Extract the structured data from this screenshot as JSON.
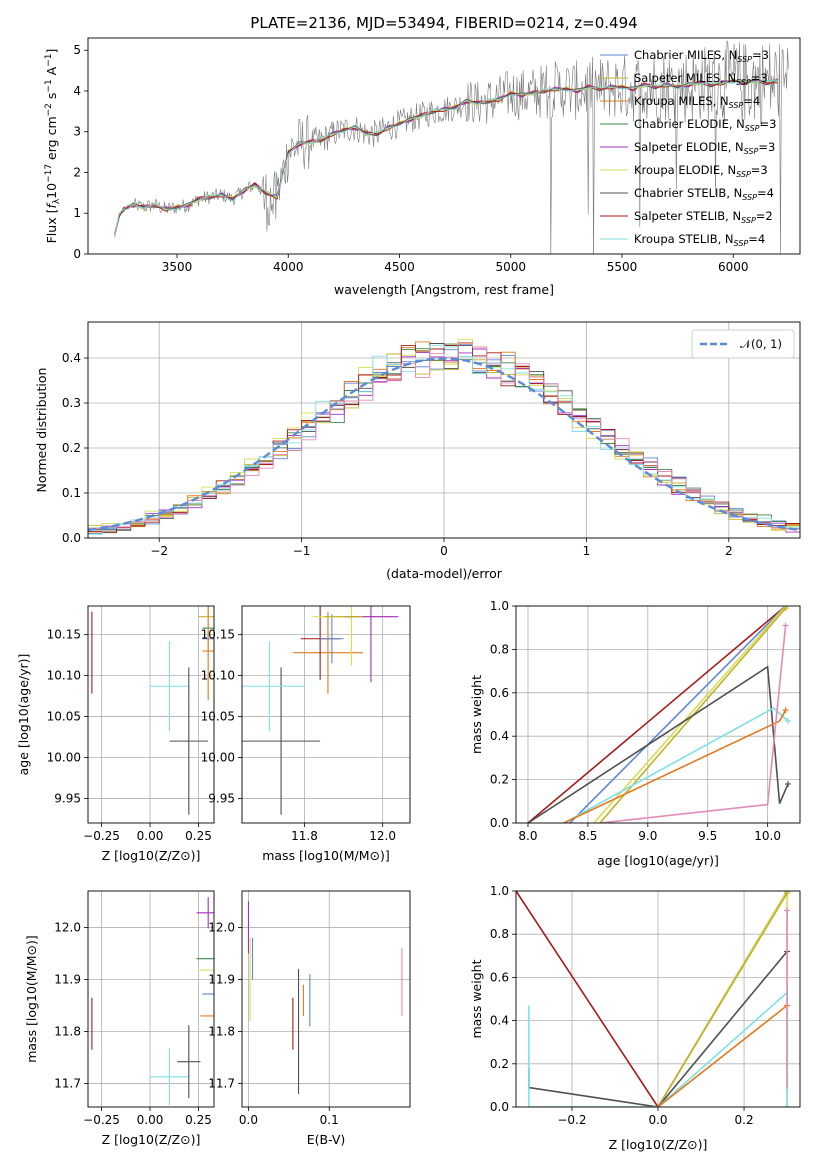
{
  "colors": {
    "chabrier_miles": "#5f87d6",
    "salpeter_miles": "#c2b229",
    "kroupa_miles": "#e4791f",
    "chabrier_elodie": "#3d8a4a",
    "salpeter_elodie": "#a52fc2",
    "kroupa_elodie": "#d6dd55",
    "chabrier_stelib": "#505050",
    "salpeter_stelib": "#a61a1a",
    "kroupa_stelib": "#7ee0e6",
    "pink": "#e48ab8",
    "normal": "#5b8bd6"
  },
  "chart_data": [
    {
      "id": "spectrum",
      "type": "line",
      "title": "PLATE=2136, MJD=53494, FIBERID=0214, z=0.494",
      "xlabel": "wavelength [Angstrom, rest frame]",
      "ylabel": "Flux [f_λ 10^-17 erg cm^-2 s^-1 A^-1]",
      "xlim": [
        3100,
        6300
      ],
      "ylim": [
        0,
        5.3
      ],
      "xticks": [
        "3500",
        "4000",
        "4500",
        "5000",
        "5500",
        "6000"
      ],
      "yticks": [
        "0",
        "1",
        "2",
        "3",
        "4",
        "5"
      ],
      "legend": [
        {
          "label": "Chabrier MILES, N_SSP=3",
          "color": "#5f87d6"
        },
        {
          "label": "Salpeter MILES, N_SSP=3",
          "color": "#c2b229"
        },
        {
          "label": "Kroupa MILES, N_SSP=4",
          "color": "#e4791f"
        },
        {
          "label": "Chabrier ELODIE, N_SSP=3",
          "color": "#3d8a4a"
        },
        {
          "label": "Salpeter ELODIE, N_SSP=3",
          "color": "#a52fc2"
        },
        {
          "label": "Kroupa ELODIE, N_SSP=3",
          "color": "#d6dd55"
        },
        {
          "label": "Chabrier STELIB, N_SSP=4",
          "color": "#505050"
        },
        {
          "label": "Salpeter STELIB, N_SSP=2",
          "color": "#a61a1a"
        },
        {
          "label": "Kroupa STELIB, N_SSP=4",
          "color": "#7ee0e6"
        }
      ],
      "model_x": [
        3220,
        3240,
        3260,
        3280,
        3300,
        3350,
        3400,
        3450,
        3500,
        3550,
        3600,
        3650,
        3700,
        3750,
        3800,
        3850,
        3900,
        3950,
        4000,
        4050,
        4100,
        4150,
        4200,
        4250,
        4300,
        4350,
        4400,
        4450,
        4500,
        4550,
        4600,
        4650,
        4700,
        4750,
        4800,
        4850,
        4900,
        4950,
        5000,
        5050,
        5100,
        5150,
        5200,
        5250,
        5300,
        5350,
        5400,
        5450,
        5500,
        5550,
        5600,
        5650,
        5700,
        5750,
        5800,
        5850,
        5900,
        5950,
        6000,
        6050,
        6100,
        6150,
        6200
      ],
      "model_y": [
        0.45,
        0.95,
        1.1,
        1.15,
        1.2,
        1.15,
        1.2,
        1.1,
        1.15,
        1.2,
        1.35,
        1.4,
        1.45,
        1.35,
        1.55,
        1.7,
        1.5,
        1.4,
        2.5,
        2.7,
        2.75,
        2.8,
        2.95,
        3.05,
        3.1,
        2.95,
        2.95,
        3.1,
        3.2,
        3.3,
        3.4,
        3.5,
        3.55,
        3.6,
        3.75,
        3.7,
        3.75,
        3.8,
        3.95,
        3.9,
        3.95,
        4.0,
        4.05,
        4.05,
        4.0,
        4.1,
        4.05,
        4.1,
        4.1,
        4.05,
        4.15,
        4.1,
        4.15,
        4.1,
        4.15,
        4.2,
        4.15,
        4.2,
        4.25,
        4.2,
        4.25,
        4.2,
        4.25
      ],
      "note_data": "SDSS spectrum (grey) shown with nine overlapping best-fit model curves"
    },
    {
      "id": "residuals",
      "type": "line",
      "xlabel": "(data-model)/error",
      "ylabel": "Normed distribution",
      "xlim": [
        -2.5,
        2.5
      ],
      "ylim": [
        0,
        0.48
      ],
      "xticks": [
        "−2",
        "−1",
        "0",
        "1",
        "2"
      ],
      "yticks": [
        "0.0",
        "0.1",
        "0.2",
        "0.3",
        "0.4"
      ],
      "legend_label": "𝒩(0, 1)",
      "grid": true
    },
    {
      "id": "age-vs-Z",
      "type": "scatter",
      "xlabel": "Z [log10(Z/Z⊙)]",
      "ylabel": "age  [log10(age/yr)]",
      "xlim": [
        -0.32,
        0.33
      ],
      "ylim": [
        9.92,
        10.185
      ],
      "xticks": [
        "−0.25",
        "0.00",
        "0.25"
      ],
      "yticks": [
        "9.95",
        "10.00",
        "10.05",
        "10.10",
        "10.15"
      ],
      "points": [
        {
          "x": -0.3,
          "y": 10.128,
          "xerr": 0.0,
          "yerr": 0.05,
          "color": "#a61a1a"
        },
        {
          "x": 0.1,
          "y": 10.087,
          "xerr": 0.1,
          "yerr": 0.055,
          "color": "#7ee0e6"
        },
        {
          "x": 0.2,
          "y": 10.02,
          "xerr": 0.1,
          "yerr": 0.09,
          "color": "#505050"
        },
        {
          "x": 0.3,
          "y": 10.172,
          "xerr": 0.05,
          "yerr": 0.0,
          "color": "#c2b229"
        },
        {
          "x": 0.3,
          "y": 10.172,
          "xerr": 0.0,
          "yerr": 0.05,
          "color": "#d6dd55"
        },
        {
          "x": 0.3,
          "y": 10.158,
          "xerr": 0.03,
          "yerr": 0.0,
          "color": "#3d8a4a"
        },
        {
          "x": 0.3,
          "y": 10.145,
          "xerr": 0.03,
          "yerr": 0.0,
          "color": "#5f87d6"
        },
        {
          "x": 0.3,
          "y": 10.13,
          "xerr": 0.03,
          "yerr": 0.06,
          "color": "#e4791f"
        }
      ]
    },
    {
      "id": "age-vs-mass",
      "type": "scatter",
      "xlabel": "mass [log10(M/M⊙)]",
      "ylabel": "",
      "xlim": [
        11.64,
        12.07
      ],
      "ylim": [
        9.92,
        10.185
      ],
      "xticks": [
        "11.8",
        "12.0"
      ],
      "yticks": [
        "9.95",
        "10.00",
        "10.05",
        "10.10",
        "10.15"
      ],
      "points": [
        {
          "x": 11.74,
          "y": 10.02,
          "xerr": 0.1,
          "yerr": 0.09,
          "color": "#505050"
        },
        {
          "x": 11.71,
          "y": 10.087,
          "xerr": 0.09,
          "yerr": 0.055,
          "color": "#7ee0e6"
        },
        {
          "x": 11.86,
          "y": 10.128,
          "xerr": 0.09,
          "yerr": 0.05,
          "color": "#e4791f"
        },
        {
          "x": 11.84,
          "y": 10.145,
          "xerr": 0.05,
          "yerr": 0.05,
          "color": "#a61a1a"
        },
        {
          "x": 11.87,
          "y": 10.145,
          "xerr": 0.03,
          "yerr": 0.03,
          "color": "#5f87d6"
        },
        {
          "x": 11.92,
          "y": 10.172,
          "xerr": 0.1,
          "yerr": 0.06,
          "color": "#d6dd55"
        },
        {
          "x": 11.97,
          "y": 10.172,
          "xerr": 0.07,
          "yerr": 0.08,
          "color": "#a52fc2"
        },
        {
          "x": 11.9,
          "y": 10.172,
          "xerr": 0.05,
          "yerr": 0.0,
          "color": "#c2b229"
        }
      ]
    },
    {
      "id": "weight-vs-age",
      "type": "line",
      "xlabel": "age  [log10(age/yr)]",
      "ylabel": "mass weight",
      "xlim": [
        7.9,
        10.27
      ],
      "ylim": [
        0,
        1.0
      ],
      "xticks": [
        "8.0",
        "8.5",
        "9.0",
        "9.5",
        "10.0"
      ],
      "yticks": [
        "0.0",
        "0.2",
        "0.4",
        "0.6",
        "0.8",
        "1.0"
      ],
      "series": [
        {
          "color": "#a61a1a",
          "x": [
            8.0,
            10.15
          ],
          "y": [
            0.0,
            1.0
          ]
        },
        {
          "color": "#5f87d6",
          "x": [
            8.35,
            10.15
          ],
          "y": [
            0.0,
            1.0
          ]
        },
        {
          "color": "#d6dd55",
          "x": [
            8.55,
            10.15
          ],
          "y": [
            0.0,
            1.0
          ]
        },
        {
          "color": "#c2b229",
          "x": [
            8.6,
            10.15
          ],
          "y": [
            0.0,
            0.99
          ]
        },
        {
          "color": "#505050",
          "x": [
            8.0,
            10.0,
            10.1,
            10.17
          ],
          "y": [
            0.0,
            0.72,
            0.09,
            0.18
          ]
        },
        {
          "color": "#7ee0e6",
          "x": [
            8.3,
            10.05,
            10.17
          ],
          "y": [
            0.0,
            0.53,
            0.47
          ]
        },
        {
          "color": "#e4791f",
          "x": [
            8.3,
            10.1,
            10.15
          ],
          "y": [
            0.0,
            0.47,
            0.52
          ]
        },
        {
          "color": "#e48ab8",
          "x": [
            8.6,
            10.0,
            10.15
          ],
          "y": [
            0.0,
            0.085,
            0.91
          ]
        }
      ]
    },
    {
      "id": "mass-vs-Z",
      "type": "scatter",
      "xlabel": "Z [log10(Z/Z⊙)]",
      "ylabel": "mass [log10(M/M⊙)]",
      "xlim": [
        -0.32,
        0.33
      ],
      "ylim": [
        11.655,
        12.07
      ],
      "xticks": [
        "−0.25",
        "0.00",
        "0.25"
      ],
      "yticks": [
        "11.7",
        "11.8",
        "11.9",
        "12.0"
      ],
      "points": [
        {
          "x": -0.3,
          "y": 11.815,
          "xerr": 0.0,
          "yerr": 0.05,
          "color": "#a61a1a"
        },
        {
          "x": 0.1,
          "y": 11.713,
          "xerr": 0.1,
          "yerr": 0.055,
          "color": "#7ee0e6"
        },
        {
          "x": 0.2,
          "y": 11.742,
          "xerr": 0.06,
          "yerr": 0.07,
          "color": "#505050"
        },
        {
          "x": 0.3,
          "y": 12.028,
          "xerr": 0.06,
          "yerr": 0.03,
          "color": "#a52fc2"
        },
        {
          "x": 0.3,
          "y": 11.94,
          "xerr": 0.06,
          "yerr": 0.0,
          "color": "#3d8a4a"
        },
        {
          "x": 0.3,
          "y": 11.918,
          "xerr": 0.05,
          "yerr": 0.0,
          "color": "#d6dd55"
        },
        {
          "x": 0.3,
          "y": 11.872,
          "xerr": 0.03,
          "yerr": 0.0,
          "color": "#5f87d6"
        },
        {
          "x": 0.3,
          "y": 11.83,
          "xerr": 0.04,
          "yerr": 0.0,
          "color": "#e4791f"
        }
      ]
    },
    {
      "id": "mass-vs-EBV",
      "type": "scatter",
      "xlabel": "E(B-V)",
      "ylabel": "",
      "xlim": [
        -0.008,
        0.2
      ],
      "ylim": [
        11.655,
        12.07
      ],
      "xticks": [
        "0.0",
        "0.1"
      ],
      "yticks": [
        "11.7",
        "11.8",
        "11.9",
        "12.0"
      ],
      "points": [
        {
          "x": 0.0,
          "y": 12.0,
          "xerr": 0.0,
          "yerr": 0.05,
          "color": "#a52fc2"
        },
        {
          "x": 0.002,
          "y": 11.9,
          "xerr": 0.0,
          "yerr": 0.08,
          "color": "#d6dd55"
        },
        {
          "x": 0.005,
          "y": 11.94,
          "xerr": 0.0,
          "yerr": 0.04,
          "color": "#5f87d6"
        },
        {
          "x": 0.055,
          "y": 11.815,
          "xerr": 0.0,
          "yerr": 0.05,
          "color": "#a61a1a"
        },
        {
          "x": 0.062,
          "y": 11.8,
          "xerr": 0.0,
          "yerr": 0.12,
          "color": "#505050"
        },
        {
          "x": 0.068,
          "y": 11.86,
          "xerr": 0.0,
          "yerr": 0.03,
          "color": "#e4791f"
        },
        {
          "x": 0.076,
          "y": 11.86,
          "xerr": 0.0,
          "yerr": 0.05,
          "color": "#5f87d6"
        },
        {
          "x": 0.19,
          "y": 11.895,
          "xerr": 0.0,
          "yerr": 0.065,
          "color": "#e48ab8"
        }
      ]
    },
    {
      "id": "weight-vs-Z",
      "type": "line",
      "xlabel": "Z [log10(Z/Z⊙)]",
      "ylabel": "mass weight",
      "xlim": [
        -0.33,
        0.33
      ],
      "ylim": [
        0,
        1.0
      ],
      "xticks": [
        "−0.2",
        "0.0",
        "0.2"
      ],
      "yticks": [
        "0.0",
        "0.2",
        "0.4",
        "0.6",
        "0.8",
        "1.0"
      ],
      "series": [
        {
          "color": "#a61a1a",
          "x": [
            -0.33,
            0.0,
            0.3
          ],
          "y": [
            1.0,
            0.0,
            1.0
          ]
        },
        {
          "color": "#d6dd55",
          "x": [
            0.0,
            0.3,
            0.3
          ],
          "y": [
            0.0,
            1.0,
            0.0
          ]
        },
        {
          "color": "#c2b229",
          "x": [
            0.0,
            0.3
          ],
          "y": [
            0.0,
            0.99
          ]
        },
        {
          "color": "#505050",
          "x": [
            -0.3,
            -0.3,
            0.0,
            0.3
          ],
          "y": [
            0.18,
            0.09,
            0.0,
            0.72
          ]
        },
        {
          "color": "#7ee0e6",
          "x": [
            -0.3,
            -0.3,
            0.0,
            0.3,
            0.3
          ],
          "y": [
            0.47,
            0.0,
            0.0,
            0.53,
            0.0
          ]
        },
        {
          "color": "#e4791f",
          "x": [
            0.0,
            0.3
          ],
          "y": [
            0.0,
            0.47
          ]
        },
        {
          "color": "#e48ab8",
          "x": [
            0.3,
            0.3
          ],
          "y": [
            0.085,
            0.91
          ]
        }
      ]
    }
  ]
}
